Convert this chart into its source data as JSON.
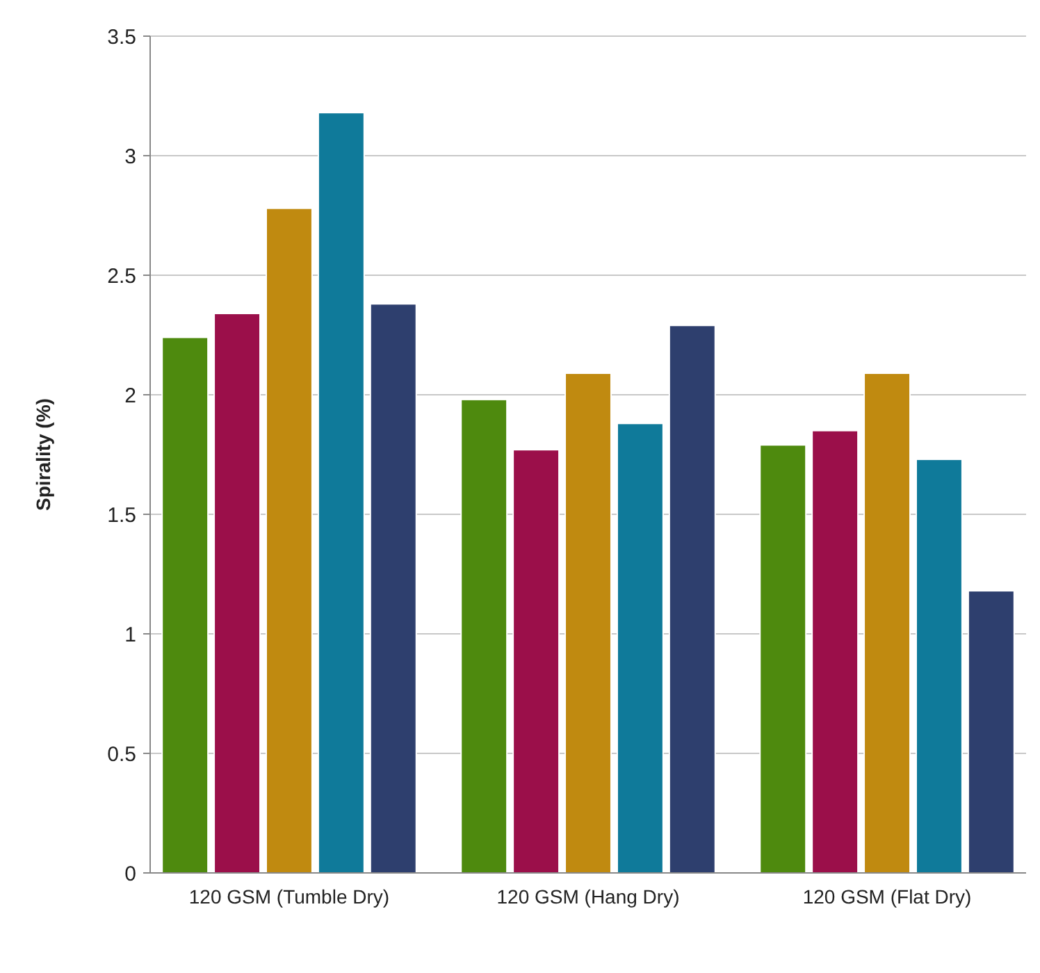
{
  "chart_data": {
    "type": "bar",
    "ylabel": "Spirality (%)",
    "categories": [
      "120 GSM (Tumble Dry)",
      "120 GSM (Hang Dry)",
      "120 GSM (Flat Dry)"
    ],
    "series": [
      {
        "color": "#4e8a0e",
        "values": [
          2.24,
          1.98,
          1.79
        ]
      },
      {
        "color": "#9b0f4a",
        "values": [
          2.34,
          1.77,
          1.85
        ]
      },
      {
        "color": "#c08a10",
        "values": [
          2.78,
          2.09,
          2.09
        ]
      },
      {
        "color": "#0f7a9a",
        "values": [
          3.18,
          1.88,
          1.73
        ]
      },
      {
        "color": "#2e3f6e",
        "values": [
          2.38,
          2.29,
          1.18
        ]
      }
    ],
    "ylim": [
      0,
      3.5
    ],
    "yticks": [
      0,
      0.5,
      1,
      1.5,
      2,
      2.5,
      3,
      3.5
    ],
    "grid": "y"
  }
}
